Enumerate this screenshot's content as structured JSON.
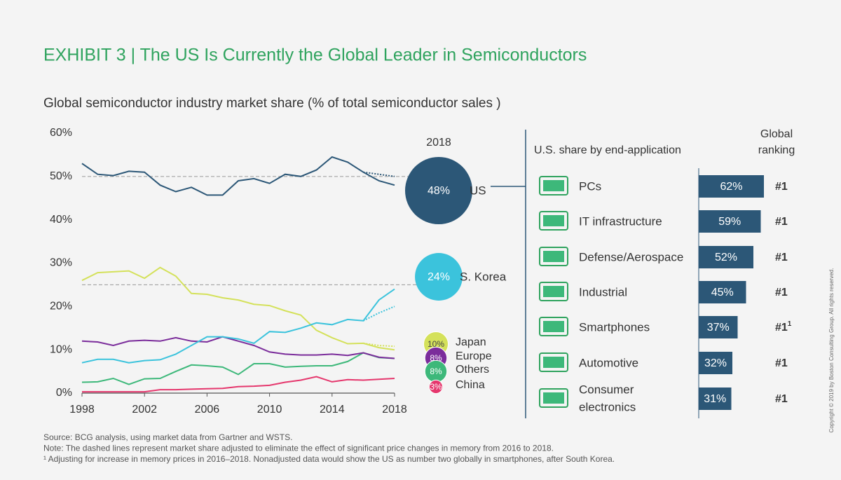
{
  "title": "EXHIBIT 3 | The US Is Currently the Global Leader in Semiconductors",
  "chart_data": [
    {
      "type": "line",
      "title": "Global semiconductor industry market share (% of total semiconductor sales )",
      "x": [
        1998,
        1999,
        2000,
        2001,
        2002,
        2003,
        2004,
        2005,
        2006,
        2007,
        2008,
        2009,
        2010,
        2011,
        2012,
        2013,
        2014,
        2015,
        2016,
        2017,
        2018
      ],
      "xlim": [
        1998,
        2018
      ],
      "xticks": [
        1998,
        2002,
        2006,
        2010,
        2014,
        2018
      ],
      "ylim": [
        0,
        60
      ],
      "yticks": [
        {
          "value": 0,
          "label": "0%"
        },
        {
          "value": 10,
          "label": "10%"
        },
        {
          "value": 20,
          "label": "20%"
        },
        {
          "value": 30,
          "label": "30%"
        },
        {
          "value": 40,
          "label": "40%"
        },
        {
          "value": 50,
          "label": "50%"
        },
        {
          "value": 60,
          "label": "60%"
        }
      ],
      "reference_lines": [
        50,
        25
      ],
      "series": [
        {
          "name": "US",
          "color": "#2c5777",
          "values": [
            53,
            50.5,
            50.2,
            51.2,
            51,
            48,
            46.5,
            47.5,
            45.7,
            45.7,
            49,
            49.5,
            48.4,
            50.5,
            50,
            51.5,
            54.5,
            53.3,
            51,
            49,
            48
          ],
          "adjusted_values": [
            null,
            null,
            null,
            null,
            null,
            null,
            null,
            null,
            null,
            null,
            null,
            null,
            null,
            null,
            null,
            null,
            null,
            null,
            51,
            50.5,
            50
          ]
        },
        {
          "name": "S. Korea",
          "color": "#3bc3dc",
          "values": [
            7,
            7.8,
            7.8,
            7,
            7.5,
            7.7,
            9,
            11,
            13,
            13,
            12.5,
            11.5,
            14.2,
            14,
            15,
            16.2,
            15.8,
            17,
            16.7,
            21.5,
            24
          ],
          "adjusted_values": [
            null,
            null,
            null,
            null,
            null,
            null,
            null,
            null,
            null,
            null,
            null,
            null,
            null,
            null,
            null,
            null,
            null,
            null,
            16.7,
            18.5,
            20
          ]
        },
        {
          "name": "Japan",
          "color": "#d4e15a",
          "values": [
            26,
            27.8,
            28,
            28.2,
            26.5,
            29,
            27,
            23,
            22.8,
            22,
            21.5,
            20.5,
            20.2,
            19,
            18,
            14.5,
            12.8,
            11.4,
            11.5,
            10.5,
            10
          ],
          "adjusted_values": [
            null,
            null,
            null,
            null,
            null,
            null,
            null,
            null,
            null,
            null,
            null,
            null,
            null,
            null,
            null,
            null,
            null,
            null,
            11.5,
            11,
            10.8
          ]
        },
        {
          "name": "Europe",
          "color": "#7b2d9b",
          "values": [
            12,
            11.8,
            11,
            12,
            12.2,
            12,
            12.8,
            12,
            11.8,
            13,
            12,
            11,
            9.5,
            9,
            8.8,
            8.8,
            9,
            8.7,
            9.3,
            8.3,
            8
          ]
        },
        {
          "name": "Others",
          "color": "#3db87a",
          "values": [
            2.5,
            2.6,
            3.4,
            2,
            3.3,
            3.4,
            5,
            6.5,
            6.3,
            6,
            4.3,
            6.8,
            6.8,
            6,
            6.2,
            6.3,
            6.3,
            7.3,
            9.3,
            8.2,
            8
          ]
        },
        {
          "name": "China",
          "color": "#e5376d",
          "values": [
            0.3,
            0.3,
            0.3,
            0.3,
            0.3,
            0.8,
            0.8,
            0.9,
            1,
            1.1,
            1.5,
            1.6,
            1.8,
            2.5,
            3,
            3.8,
            2.6,
            3.1,
            3,
            3.2,
            3.4
          ]
        }
      ]
    },
    {
      "type": "bubble",
      "title": "2018",
      "categories": [
        "US",
        "S. Korea",
        "Japan",
        "Europe",
        "Others",
        "China"
      ],
      "values": [
        48,
        24,
        10,
        8,
        8,
        3
      ],
      "value_labels": [
        "48%",
        "24%",
        "10%",
        "8%",
        "8%",
        "3%"
      ],
      "colors": [
        "#2c5777",
        "#3bc3dc",
        "#d4e15a",
        "#7b2d9b",
        "#3db87a",
        "#e5376d"
      ]
    },
    {
      "type": "bar",
      "title": "U.S. share by end-application",
      "ranking_title": "Global ranking",
      "categories": [
        "PCs",
        "IT infrastructure",
        "Defense/Aerospace",
        "Industrial",
        "Smartphones",
        "Automotive",
        [
          "Consumer",
          "electronics"
        ]
      ],
      "values": [
        62,
        59,
        52,
        45,
        37,
        32,
        31
      ],
      "value_labels": [
        "62%",
        "59%",
        "52%",
        "45%",
        "37%",
        "32%",
        "31%"
      ],
      "color": "#2c5777",
      "rankings": [
        "#1",
        "#1",
        "#1",
        "#1",
        "#1",
        "#1",
        "#1"
      ],
      "ranking_superscripts": [
        null,
        null,
        null,
        null,
        "1",
        null,
        null
      ]
    }
  ],
  "notes": [
    "Source: BCG analysis, using market data from Gartner and WSTS.",
    "Note: The dashed lines represent market share adjusted to eliminate the effect of significant price changes in memory from 2016 to 2018.",
    "¹ Adjusting for increase in memory prices in 2016–2018. Nonadjusted data would show the US as number two globally in smartphones, after South Korea."
  ],
  "copyright": "Copyright © 2019 by Boston Consulting Group. All rights reserved."
}
